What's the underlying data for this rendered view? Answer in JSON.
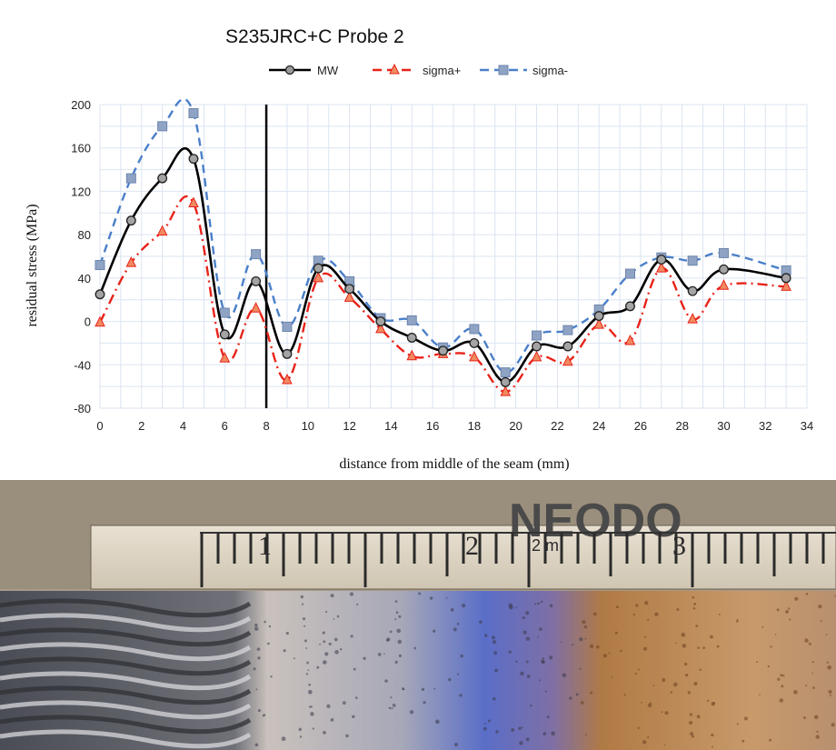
{
  "chart_data": {
    "type": "line",
    "title": "S235JRC+C Probe 2",
    "xlabel": "distance from middle of the seam (mm)",
    "ylabel": "residual stress (MPa)",
    "xlim": [
      0,
      34
    ],
    "ylim": [
      -80,
      200
    ],
    "xticks": [
      0,
      2,
      4,
      6,
      8,
      10,
      12,
      14,
      16,
      18,
      20,
      22,
      24,
      26,
      28,
      30,
      32,
      34
    ],
    "yticks": [
      -80,
      -40,
      0,
      40,
      80,
      120,
      160,
      200
    ],
    "ytick_labels": [
      "-80",
      "-40",
      "0",
      "40",
      "80",
      "120",
      "160",
      "200"
    ],
    "grid": true,
    "legend_position": "top",
    "vertical_marker_x": 8,
    "series": [
      {
        "name": "MW",
        "color": "#000000",
        "line_style": "solid",
        "marker": "circle",
        "x": [
          0,
          1.5,
          3,
          4.5,
          6,
          7.5,
          9,
          10.5,
          12,
          13.5,
          15,
          16.5,
          18,
          19.5,
          21,
          22.5,
          24,
          25.5,
          27,
          28.5,
          30,
          33
        ],
        "y": [
          25,
          93,
          132,
          150,
          -12,
          37,
          -30,
          49,
          30,
          0,
          -15,
          -27,
          -20,
          -56,
          -23,
          -23,
          5,
          14,
          57,
          28,
          48,
          40
        ]
      },
      {
        "name": "sigma+",
        "color": "#e8231a",
        "line_style": "dash-dot",
        "marker": "triangle",
        "x": [
          0,
          1.5,
          3,
          4.5,
          6,
          7.5,
          9,
          10.5,
          12,
          13.5,
          15,
          16.5,
          18,
          19.5,
          21,
          22.5,
          24,
          25.5,
          27,
          28.5,
          30,
          33
        ],
        "y": [
          -1,
          54,
          83,
          109,
          -34,
          12,
          -54,
          40,
          22,
          -7,
          -32,
          -30,
          -33,
          -65,
          -33,
          -37,
          -3,
          -18,
          49,
          2,
          33,
          32
        ]
      },
      {
        "name": "sigma-",
        "color": "#4a7fc9",
        "line_style": "dashed",
        "marker": "square",
        "x": [
          0,
          1.5,
          3,
          4.5,
          6,
          7.5,
          9,
          10.5,
          12,
          13.5,
          15,
          16.5,
          18,
          19.5,
          21,
          22.5,
          24,
          25.5,
          27,
          28.5,
          30,
          33
        ],
        "y": [
          52,
          132,
          180,
          192,
          8,
          62,
          -5,
          56,
          37,
          3,
          1,
          -24,
          -7,
          -47,
          -13,
          -8,
          11,
          44,
          59,
          56,
          63,
          47
        ]
      }
    ]
  },
  "photo": {
    "ruler_labels": [
      "1",
      "2",
      "2 m",
      "3"
    ],
    "ruler_brand_text": "NEODO",
    "colors": {
      "metal": "#a79a88",
      "ruler": "#ddd4c4",
      "heat_tint_blue": "#5a6ec8",
      "heat_tint_bronze": "#b07a45"
    }
  }
}
